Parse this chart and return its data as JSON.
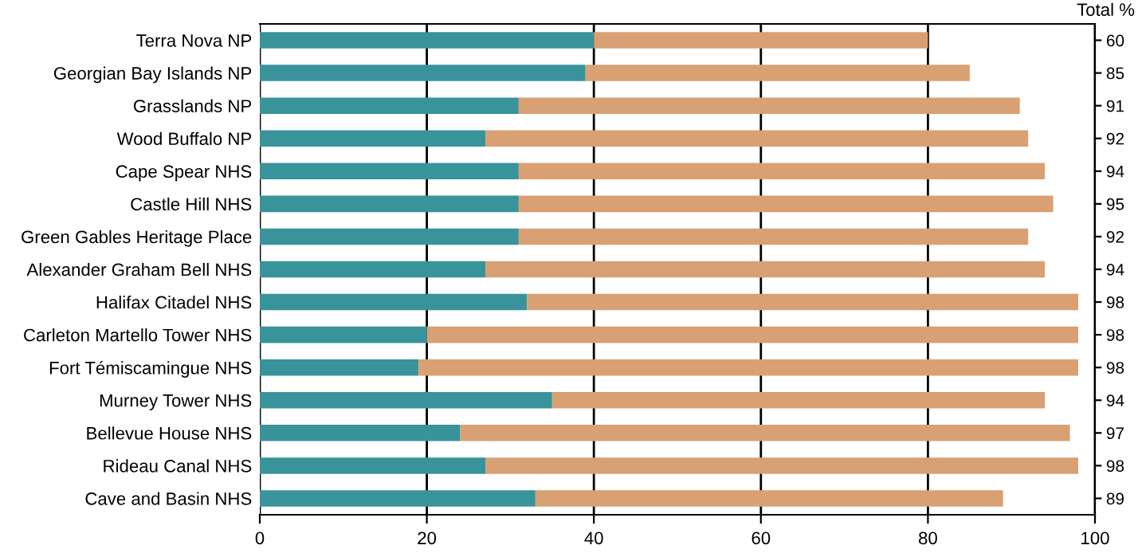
{
  "chart_data": {
    "type": "bar",
    "orientation": "horizontal",
    "stacked": true,
    "categories": [
      "Terra Nova NP",
      "Georgian Bay Islands NP",
      "Grasslands NP",
      "Wood Buffalo NP",
      "Cape Spear NHS",
      "Castle Hill NHS",
      "Green Gables Heritage Place",
      "Alexander Graham Bell NHS",
      "Halifax Citadel NHS",
      "Carleton Martello Tower NHS",
      "Fort Témiscamingue NHS",
      "Murney Tower NHS",
      "Bellevue House NHS",
      "Rideau Canal NHS",
      "Cave and Basin NHS"
    ],
    "series": [
      {
        "color": "#38939b",
        "values": [
          40,
          39,
          31,
          27,
          31,
          31,
          31,
          27,
          32,
          20,
          19,
          35,
          24,
          27,
          33
        ]
      },
      {
        "color": "#d8a073",
        "values": [
          40,
          46,
          60,
          65,
          63,
          64,
          61,
          67,
          66,
          78,
          79,
          59,
          73,
          71,
          56
        ]
      }
    ],
    "annotations": [
      "Total %",
      "60",
      "85",
      "91",
      "92",
      "94",
      "95",
      "92",
      "94",
      "98",
      "98",
      "98",
      "94",
      "97",
      "98",
      "89"
    ],
    "xlim": [
      0,
      100
    ],
    "xticks": [
      0,
      20,
      40,
      60,
      80,
      100
    ],
    "grid": "x",
    "legend": false
  }
}
